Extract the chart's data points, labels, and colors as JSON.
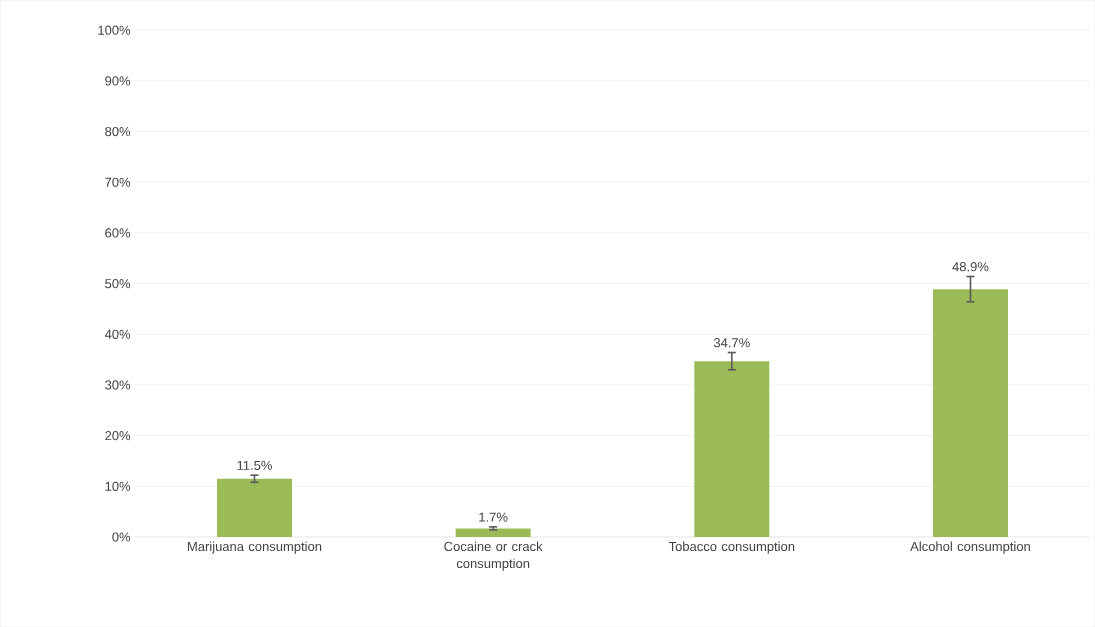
{
  "chart_data": {
    "type": "bar",
    "categories": [
      "Marijuana consumption",
      "Cocaine or crack consumption",
      "Tobacco consumption",
      "Alcohol consumption"
    ],
    "values": [
      11.5,
      1.7,
      34.7,
      48.9
    ],
    "errors": [
      0.7,
      0.3,
      1.7,
      2.5
    ],
    "value_labels": [
      "11.5%",
      "1.7%",
      "34.7%",
      "48.9%"
    ],
    "color": "#9bbb59",
    "ylim": [
      0,
      100
    ],
    "yticks": [
      {
        "value": 0,
        "label": "0%"
      },
      {
        "value": 10,
        "label": "10%"
      },
      {
        "value": 20,
        "label": "20%"
      },
      {
        "value": 30,
        "label": "30%"
      },
      {
        "value": 40,
        "label": "40%"
      },
      {
        "value": 50,
        "label": "50%"
      },
      {
        "value": 60,
        "label": "60%"
      },
      {
        "value": 70,
        "label": "70%"
      },
      {
        "value": 80,
        "label": "80%"
      },
      {
        "value": 90,
        "label": "90%"
      },
      {
        "value": 100,
        "label": "100%"
      }
    ],
    "grid": "y"
  }
}
